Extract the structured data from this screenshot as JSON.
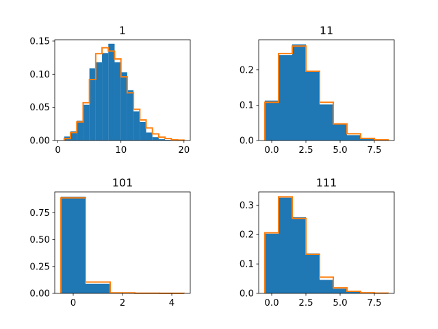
{
  "chart_data": [
    {
      "type": "bar",
      "title": "1",
      "xlim": [
        -0.5,
        21
      ],
      "ylim": [
        0,
        0.152
      ],
      "xticks": [
        0,
        10,
        20
      ],
      "xtick_labels": [
        "0",
        "10",
        "20"
      ],
      "yticks": [
        0,
        0.05,
        0.1,
        0.15
      ],
      "ytick_labels": [
        "0.00",
        "0.05",
        "0.10",
        "0.15"
      ],
      "bin_edges": [
        1,
        2,
        3,
        4,
        5,
        6,
        7,
        8,
        9,
        10,
        11,
        12,
        13,
        14,
        15,
        16,
        17,
        18,
        19,
        20
      ],
      "series": [
        {
          "values": [
            0.006,
            0.014,
            0.03,
            0.054,
            0.109,
            0.118,
            0.132,
            0.146,
            0.118,
            0.103,
            0.076,
            0.044,
            0.028,
            0.012,
            0.005,
            0.002,
            0.001,
            0.0005,
            0.0003
          ]
        },
        {
          "values": [
            0.003,
            0.012,
            0.028,
            0.057,
            0.092,
            0.131,
            0.14,
            0.135,
            0.123,
            0.096,
            0.072,
            0.047,
            0.031,
            0.019,
            0.01,
            0.005,
            0.003,
            0.001,
            0.0007
          ]
        }
      ],
      "colors": [
        "#1f77b4",
        "#ff7f0e"
      ]
    },
    {
      "type": "bar",
      "title": "11",
      "xlim": [
        -0.95,
        8.95
      ],
      "ylim": [
        0,
        0.285
      ],
      "xticks": [
        0,
        2.5,
        5,
        7.5
      ],
      "xtick_labels": [
        "0.0",
        "2.5",
        "5.0",
        "7.5"
      ],
      "yticks": [
        0,
        0.1,
        0.2
      ],
      "ytick_labels": [
        "0.0",
        "0.1",
        "0.2"
      ],
      "bin_edges": [
        -0.5,
        0.5,
        1.5,
        2.5,
        3.5,
        4.5,
        5.5,
        6.5,
        7.5,
        8.5
      ],
      "series": [
        {
          "values": [
            0.113,
            0.242,
            0.272,
            0.197,
            0.102,
            0.046,
            0.015,
            0.005,
            0.002
          ]
        },
        {
          "values": [
            0.108,
            0.246,
            0.267,
            0.196,
            0.108,
            0.047,
            0.019,
            0.006,
            0.002
          ]
        }
      ],
      "colors": [
        "#1f77b4",
        "#ff7f0e"
      ]
    },
    {
      "type": "bar",
      "title": "101",
      "xlim": [
        -0.75,
        4.75
      ],
      "ylim": [
        0,
        0.945
      ],
      "xticks": [
        0,
        2,
        4
      ],
      "xtick_labels": [
        "0",
        "2",
        "4"
      ],
      "yticks": [
        0,
        0.25,
        0.5,
        0.75
      ],
      "ytick_labels": [
        "0.00",
        "0.25",
        "0.50",
        "0.75"
      ],
      "bin_edges": [
        -0.5,
        0.5,
        1.5,
        2.5,
        3.5,
        4.5
      ],
      "series": [
        {
          "values": [
            0.901,
            0.09,
            0.006,
            0.002,
            0.001
          ]
        },
        {
          "values": [
            0.89,
            0.105,
            0.005,
            0.002,
            0.001
          ]
        }
      ],
      "colors": [
        "#1f77b4",
        "#ff7f0e"
      ]
    },
    {
      "type": "bar",
      "title": "111",
      "xlim": [
        -0.95,
        8.95
      ],
      "ylim": [
        0,
        0.345
      ],
      "xticks": [
        0,
        2.5,
        5,
        7.5
      ],
      "xtick_labels": [
        "0.0",
        "2.5",
        "5.0",
        "7.5"
      ],
      "yticks": [
        0,
        0.1,
        0.2,
        0.3
      ],
      "ytick_labels": [
        "0.0",
        "0.1",
        "0.2",
        "0.3"
      ],
      "bin_edges": [
        -0.5,
        0.5,
        1.5,
        2.5,
        3.5,
        4.5,
        5.5,
        6.5,
        7.5,
        8.5
      ],
      "series": [
        {
          "values": [
            0.203,
            0.325,
            0.259,
            0.136,
            0.046,
            0.016,
            0.005,
            0.002,
            0.001
          ]
        },
        {
          "values": [
            0.206,
            0.328,
            0.255,
            0.133,
            0.055,
            0.019,
            0.007,
            0.002,
            0.001
          ]
        }
      ],
      "colors": [
        "#1f77b4",
        "#ff7f0e"
      ]
    }
  ]
}
